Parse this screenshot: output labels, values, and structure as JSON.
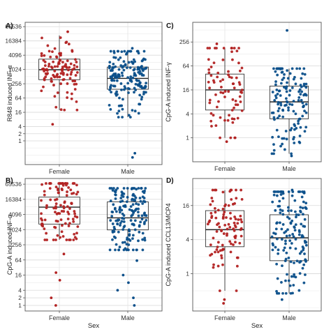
{
  "chart_data": [
    {
      "panel": "A)",
      "type": "box",
      "ylabel": "R848 induced INF-α",
      "scale": "log2",
      "yticks": [
        "1",
        "2",
        "4",
        "16",
        "64",
        "256",
        "1024",
        "4096",
        "16384",
        "65536"
      ],
      "tick_values": [
        1,
        2,
        4,
        16,
        64,
        256,
        1024,
        4096,
        16384,
        65536
      ],
      "ylim": [
        0.1,
        100000
      ],
      "categories": [
        "Female",
        "Male"
      ],
      "xlabel": "",
      "series": [
        {
          "category": "Female",
          "color": "#b22222",
          "box": {
            "min": 20,
            "q1": 380,
            "median": 1000,
            "q3": 2800,
            "max": 28000
          },
          "outliers": [
            5,
            40000
          ],
          "n_points": 110
        },
        {
          "category": "Male",
          "color": "#0b4f8a",
          "box": {
            "min": 10,
            "q1": 150,
            "median": 430,
            "q3": 1300,
            "max": 6000
          },
          "outliers": [
            0.2,
            0.3,
            8000
          ],
          "n_points": 170
        }
      ]
    },
    {
      "panel": "C)",
      "type": "box",
      "ylabel": "CpG-A induced INF-γ",
      "scale": "log2",
      "yticks": [
        "1",
        "4",
        "16",
        "64",
        "256"
      ],
      "tick_values": [
        1,
        4,
        16,
        64,
        256
      ],
      "ylim": [
        0.25,
        800
      ],
      "categories": [
        "Female",
        "Male"
      ],
      "xlabel": "",
      "series": [
        {
          "category": "Female",
          "color": "#b22222",
          "box": {
            "min": 1,
            "q1": 5,
            "median": 16,
            "q3": 40,
            "max": 180
          },
          "outliers": [
            0.8,
            230
          ],
          "n_points": 80
        },
        {
          "category": "Male",
          "color": "#0b4f8a",
          "box": {
            "min": 0.4,
            "q1": 3,
            "median": 8,
            "q3": 20,
            "max": 55
          },
          "outliers": [
            0.35,
            500
          ],
          "n_points": 140
        }
      ]
    },
    {
      "panel": "B)",
      "type": "box",
      "ylabel": "CpG-A induced INF-α",
      "scale": "log2",
      "yticks": [
        "1",
        "2",
        "4",
        "16",
        "64",
        "256",
        "1024",
        "4096",
        "16384",
        "65536"
      ],
      "tick_values": [
        1,
        2,
        4,
        16,
        64,
        256,
        1024,
        4096,
        16384,
        65536
      ],
      "ylim": [
        0.6,
        110000
      ],
      "categories": [
        "Female",
        "Male"
      ],
      "xlabel": "Sex",
      "series": [
        {
          "category": "Female",
          "color": "#b22222",
          "box": {
            "min": 400,
            "q1": 1700,
            "median": 8000,
            "q3": 20000,
            "max": 70000
          },
          "outliers": [
            1,
            2,
            10,
            20,
            110
          ],
          "n_points": 110
        },
        {
          "category": "Male",
          "color": "#0b4f8a",
          "box": {
            "min": 160,
            "q1": 1000,
            "median": 3000,
            "q3": 13000,
            "max": 45000
          },
          "outliers": [
            1,
            2,
            4,
            8,
            16,
            60
          ],
          "n_points": 170
        }
      ]
    },
    {
      "panel": "D)",
      "type": "box",
      "ylabel": "CpG-A induced CCL13/MCP4",
      "scale": "log2",
      "yticks": [
        "1",
        "4",
        "16"
      ],
      "tick_values": [
        1,
        4,
        16
      ],
      "ylim": [
        0.22,
        48
      ],
      "categories": [
        "Female",
        "Male"
      ],
      "xlabel": "Sex",
      "series": [
        {
          "category": "Female",
          "color": "#b22222",
          "box": {
            "min": 0.5,
            "q1": 3,
            "median": 6,
            "q3": 13,
            "max": 30
          },
          "outliers": [
            0.3,
            0.35
          ],
          "n_points": 100
        },
        {
          "category": "Male",
          "color": "#0b4f8a",
          "box": {
            "min": 0.45,
            "q1": 1.7,
            "median": 4.3,
            "q3": 11,
            "max": 28
          },
          "outliers": [
            0.35,
            30
          ],
          "n_points": 150
        }
      ]
    }
  ]
}
